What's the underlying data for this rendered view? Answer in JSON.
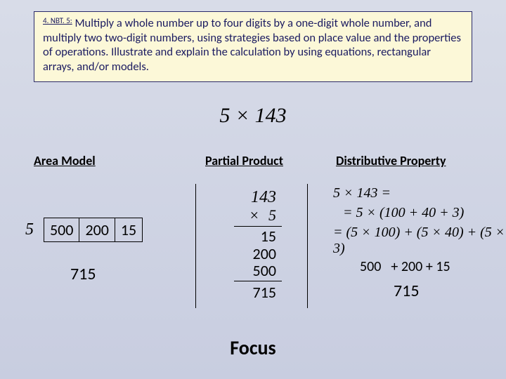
{
  "standard": {
    "code": "4. NBT. 5:",
    "text": "Multiply a whole number up to four digits by a one-digit whole number, and multiply two two-digit numbers, using strategies based on place value and the properties of operations.  Illustrate and explain the calculation by using equations, rectangular arrays, and/or models."
  },
  "main_expression": "5 × 143",
  "headings": {
    "area": "Area Model",
    "partial": "Partial Product",
    "distributive": "Distributive Property"
  },
  "area_model": {
    "multiplier": "5",
    "cells": [
      "500",
      "200",
      "15"
    ],
    "total": "715"
  },
  "partial_product": {
    "multiplicand": "143",
    "multiplier": "5",
    "times_symbol": "×",
    "partials": [
      "15",
      "200",
      "500"
    ],
    "total": "715"
  },
  "distributive": {
    "line1": "5 × 143 =",
    "line2": "= 5 × (100 + 40 + 3)",
    "line3": "= (5 × 100) + (5 × 40) + (5 × 3)",
    "sum_500": "500",
    "sum_rest": "+ 200 + 15",
    "total": "715"
  },
  "focus": "Focus",
  "colors": {
    "page_bg_top": "#d8dce8",
    "page_bg_bottom": "#c8cde0",
    "box_bg": "#fcf8d8",
    "box_border": "#2a2a6a",
    "box_text": "#1a1a60",
    "text": "#000000"
  },
  "typography": {
    "body_font": "Calibri",
    "math_font": "Times New Roman",
    "standard_fontsize": 16.5,
    "heading_fontsize": 18,
    "math_fontsize": 24,
    "focus_fontsize": 28
  }
}
